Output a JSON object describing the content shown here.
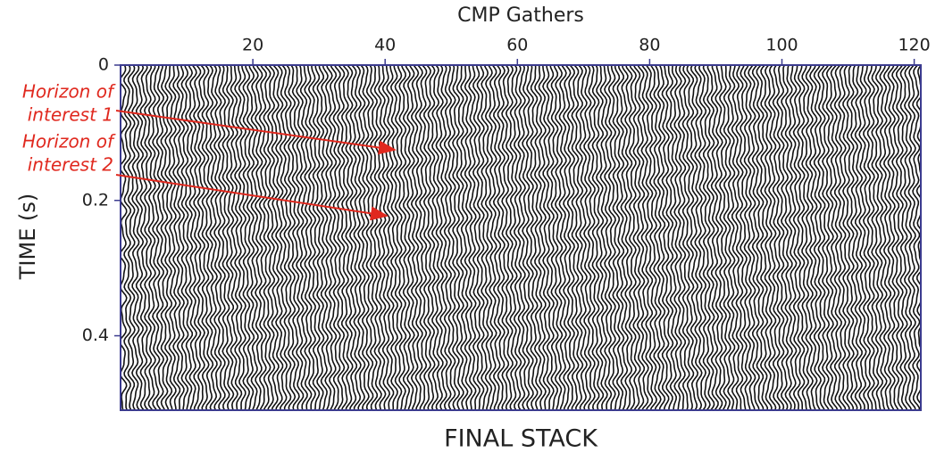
{
  "chart_data": {
    "type": "seismic",
    "xlabel": "CMP Gathers",
    "ylabel": "TIME (s)",
    "caption": "FINAL STACK",
    "xlim": [
      0,
      121
    ],
    "xticks": [
      20,
      40,
      60,
      80,
      100,
      120
    ],
    "ylim": [
      0,
      0.51
    ],
    "yticks": [
      0,
      0.2,
      0.4
    ],
    "annotations": [
      {
        "lines": [
          "Horizon of",
          "interest 1"
        ]
      },
      {
        "lines": [
          "Horizon of",
          "interest 2"
        ]
      }
    ]
  }
}
